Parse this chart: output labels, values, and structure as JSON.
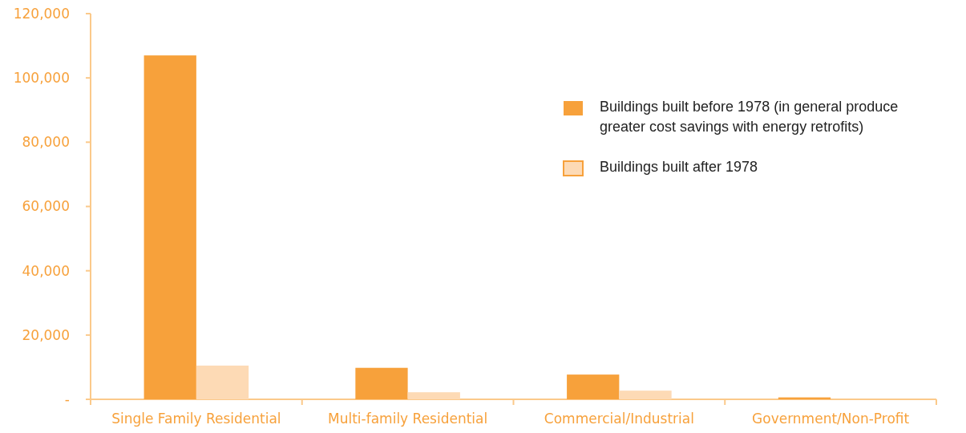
{
  "chart_data": {
    "type": "bar",
    "categories": [
      "Single Family Residential",
      "Multi-family Residential",
      "Commercial/Industrial",
      "Government/Non-Profit"
    ],
    "series": [
      {
        "name": "Buildings built before 1978 (in general produce greater cost savings with energy retrofits)",
        "color": "#f7a13b",
        "values": [
          107000,
          9800,
          7700,
          600
        ]
      },
      {
        "name": "Buildings built after 1978",
        "color": "#fddab5",
        "values": [
          10500,
          2200,
          2700,
          0
        ]
      }
    ],
    "ylim": [
      0,
      120000
    ],
    "yticks": [
      {
        "value": 0,
        "label": "-"
      },
      {
        "value": 20000,
        "label": "20,000"
      },
      {
        "value": 40000,
        "label": "40,000"
      },
      {
        "value": 60000,
        "label": "60,000"
      },
      {
        "value": 80000,
        "label": "80,000"
      },
      {
        "value": 100000,
        "label": "100,000"
      },
      {
        "value": 120000,
        "label": "120,000"
      }
    ],
    "grid": false,
    "legend": "top right"
  }
}
